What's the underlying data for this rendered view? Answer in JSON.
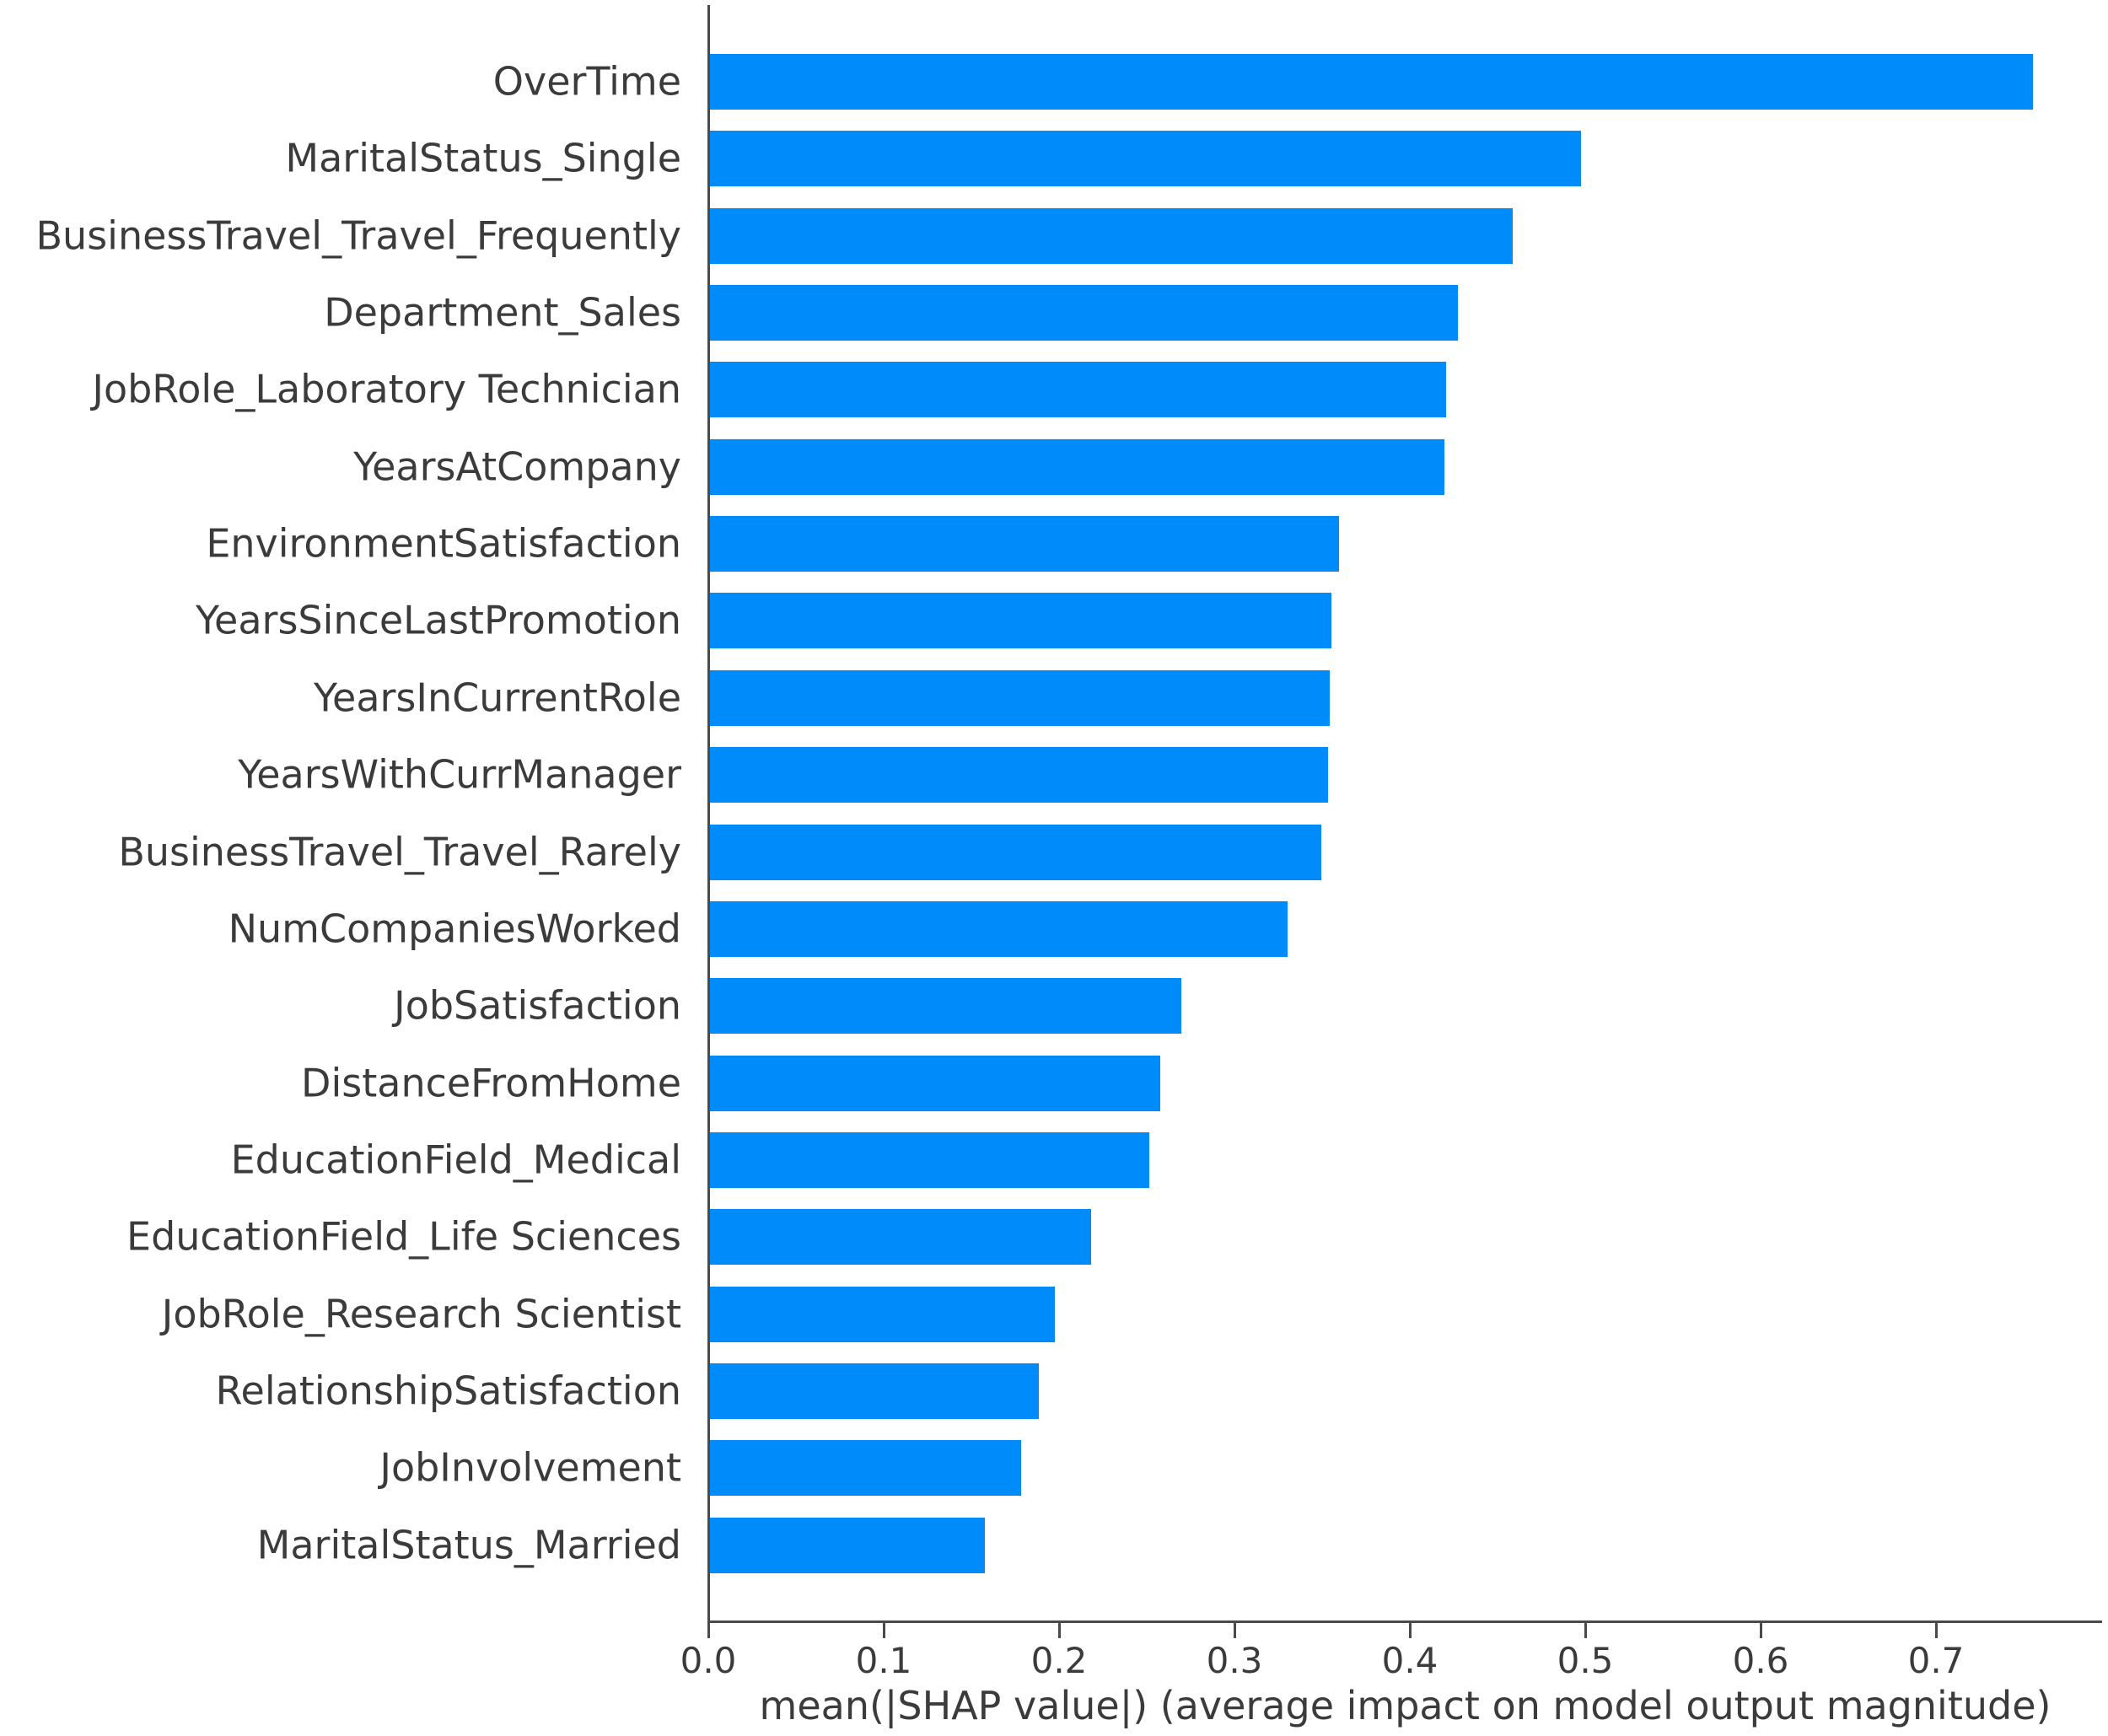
{
  "chart_data": {
    "type": "bar",
    "orientation": "horizontal",
    "title": "",
    "xlabel": "mean(|SHAP value|) (average impact on model output magnitude)",
    "ylabel": "",
    "categories": [
      "OverTime",
      "MaritalStatus_Single",
      "BusinessTravel_Travel_Frequently",
      "Department_Sales",
      "JobRole_Laboratory Technician",
      "YearsAtCompany",
      "EnvironmentSatisfaction",
      "YearsSinceLastPromotion",
      "YearsInCurrentRole",
      "YearsWithCurrManager",
      "BusinessTravel_Travel_Rarely",
      "NumCompaniesWorked",
      "JobSatisfaction",
      "DistanceFromHome",
      "EducationField_Medical",
      "EducationField_Life Sciences",
      "JobRole_Research Scientist",
      "RelationshipSatisfaction",
      "JobInvolvement",
      "MaritalStatus_Married"
    ],
    "values": [
      0.755,
      0.497,
      0.458,
      0.427,
      0.42,
      0.419,
      0.359,
      0.355,
      0.354,
      0.353,
      0.349,
      0.33,
      0.269,
      0.257,
      0.251,
      0.218,
      0.197,
      0.188,
      0.178,
      0.157
    ],
    "xticks": [
      "0.0",
      "0.1",
      "0.2",
      "0.3",
      "0.4",
      "0.5",
      "0.6",
      "0.7"
    ],
    "xtick_values": [
      0.0,
      0.1,
      0.2,
      0.3,
      0.4,
      0.5,
      0.6,
      0.7
    ],
    "xlim": [
      0.0,
      0.795
    ],
    "grid": false,
    "legend": "none",
    "bar_color": "#008bfb",
    "text_color": "#3b3b3b",
    "axis_color": "#4a4a4a"
  }
}
